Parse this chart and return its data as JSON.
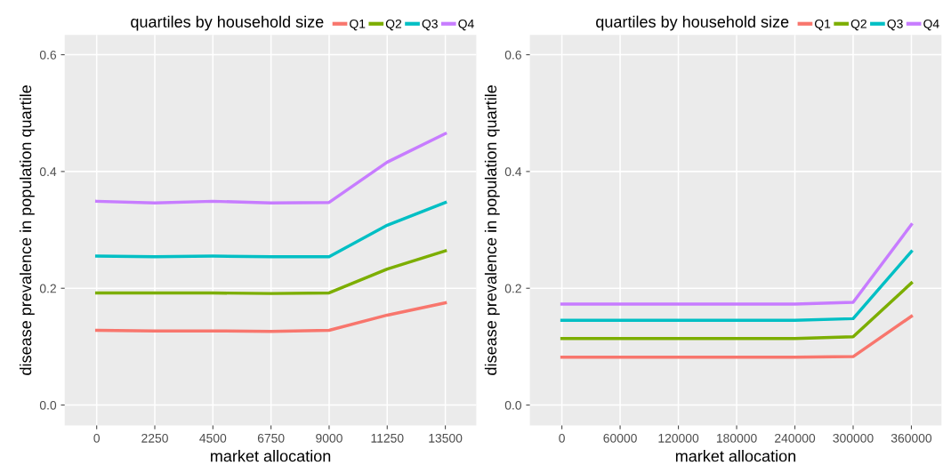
{
  "chart_data": [
    {
      "type": "line",
      "legend_title": "quartiles by household size",
      "xlabel": "market allocation",
      "ylabel": "disease prevalence in population quartile",
      "x": [
        0,
        2250,
        4500,
        6750,
        9000,
        11250,
        13500
      ],
      "xlim": [
        -1240,
        14700
      ],
      "xticks": [
        0,
        2250,
        4500,
        6750,
        9000,
        11250,
        13500
      ],
      "ylim": [
        -0.035,
        0.634
      ],
      "yticks": [
        {
          "value": 0,
          "label": "0.0"
        },
        0.2,
        0.4,
        0.6
      ],
      "grid": true,
      "legend": "top",
      "series": [
        {
          "name": "Q1",
          "color": "#f8766d",
          "values": [
            0.128,
            0.127,
            0.127,
            0.126,
            0.128,
            0.154,
            0.175
          ]
        },
        {
          "name": "Q2",
          "color": "#7cae00",
          "values": [
            0.192,
            0.192,
            0.192,
            0.191,
            0.192,
            0.233,
            0.264
          ]
        },
        {
          "name": "Q3",
          "color": "#00bfc4",
          "values": [
            0.255,
            0.254,
            0.255,
            0.254,
            0.254,
            0.308,
            0.347
          ]
        },
        {
          "name": "Q4",
          "color": "#c77cff",
          "values": [
            0.349,
            0.346,
            0.349,
            0.346,
            0.347,
            0.416,
            0.465
          ]
        }
      ]
    },
    {
      "type": "line",
      "legend_title": "quartiles by household size",
      "xlabel": "market allocation",
      "ylabel": "disease prevalence in population quartile",
      "x": [
        0,
        60000,
        120000,
        180000,
        240000,
        300000,
        360000
      ],
      "xlim": [
        -33000,
        391000
      ],
      "xticks": [
        0,
        60000,
        120000,
        180000,
        240000,
        300000,
        360000
      ],
      "ylim": [
        -0.035,
        0.634
      ],
      "yticks": [
        {
          "value": 0,
          "label": "0.0"
        },
        0.2,
        0.4,
        0.6
      ],
      "grid": true,
      "legend": "top",
      "series": [
        {
          "name": "Q1",
          "color": "#f8766d",
          "values": [
            0.082,
            0.082,
            0.082,
            0.082,
            0.082,
            0.083,
            0.152
          ]
        },
        {
          "name": "Q2",
          "color": "#7cae00",
          "values": [
            0.114,
            0.114,
            0.114,
            0.114,
            0.114,
            0.117,
            0.209
          ]
        },
        {
          "name": "Q3",
          "color": "#00bfc4",
          "values": [
            0.145,
            0.145,
            0.145,
            0.145,
            0.145,
            0.148,
            0.263
          ]
        },
        {
          "name": "Q4",
          "color": "#c77cff",
          "values": [
            0.173,
            0.173,
            0.173,
            0.173,
            0.173,
            0.176,
            0.309
          ]
        }
      ]
    }
  ]
}
